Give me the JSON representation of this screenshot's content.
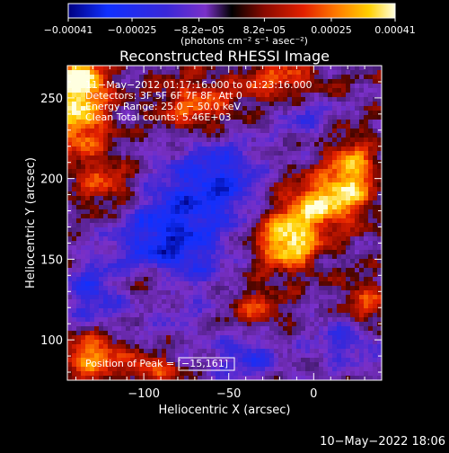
{
  "chart_data": {
    "type": "heatmap",
    "title": "Reconstructed RHESSI Image",
    "xlabel": "Heliocentric X (arcsec)",
    "ylabel": "Heliocentric Y (arcsec)",
    "xlim": [
      -145,
      40
    ],
    "ylim": [
      75,
      270
    ],
    "x_ticks": [
      {
        "value": -100,
        "label": "−100"
      },
      {
        "value": -50,
        "label": "−50"
      },
      {
        "value": 0,
        "label": "0"
      }
    ],
    "y_ticks": [
      {
        "value": 100,
        "label": "100"
      },
      {
        "value": 150,
        "label": "150"
      },
      {
        "value": 200,
        "label": "200"
      },
      {
        "value": 250,
        "label": "250"
      }
    ],
    "colorbar": {
      "range": [
        -0.00041,
        0.00041
      ],
      "ticks": [
        {
          "value": -0.00041,
          "label": "−0.00041"
        },
        {
          "value": -0.00025,
          "label": "−0.00025"
        },
        {
          "value": -8.2e-05,
          "label": "−8.2e−05"
        },
        {
          "value": 8.2e-05,
          "label": "8.2e−05"
        },
        {
          "value": 0.00025,
          "label": "0.00025"
        },
        {
          "value": 0.00041,
          "label": "0.00041"
        }
      ],
      "unit_label": "(photons cm⁻² s⁻¹ asec⁻²)"
    },
    "annotations": [
      "11−May−2012 01:17:16.000 to 01:23:16.000",
      "Detectors: 3F 5F 6F 7F 8F, Att 0",
      "Energy Range: 25.0 − 50.0 keV",
      "Clean    Total counts: 5.46E+03"
    ],
    "peak_label": "Position of Peak = [−15,161]",
    "peak": {
      "x": -15,
      "y": 161
    },
    "hot_regions": [
      {
        "x": -15,
        "y": 161,
        "sx": 13,
        "sy": 12,
        "amp": 1.0
      },
      {
        "x": 5,
        "y": 185,
        "sx": 16,
        "sy": 11,
        "amp": 0.8
      },
      {
        "x": 22,
        "y": 205,
        "sx": 10,
        "sy": 14,
        "amp": 0.75
      },
      {
        "x": -138,
        "y": 240,
        "sx": 12,
        "sy": 18,
        "amp": 0.85
      },
      {
        "x": -138,
        "y": 262,
        "sx": 10,
        "sy": 8,
        "amp": 0.8
      },
      {
        "x": -130,
        "y": 90,
        "sx": 12,
        "sy": 9,
        "amp": 0.75
      },
      {
        "x": -95,
        "y": 82,
        "sx": 10,
        "sy": 6,
        "amp": 0.6
      },
      {
        "x": -95,
        "y": 135,
        "sx": 16,
        "sy": 8,
        "amp": 0.55
      },
      {
        "x": -70,
        "y": 245,
        "sx": 16,
        "sy": 12,
        "amp": 0.55
      },
      {
        "x": -20,
        "y": 260,
        "sx": 18,
        "sy": 10,
        "amp": 0.5
      },
      {
        "x": -120,
        "y": 195,
        "sx": 14,
        "sy": 12,
        "amp": 0.5
      },
      {
        "x": 30,
        "y": 120,
        "sx": 10,
        "sy": 12,
        "amp": 0.5
      },
      {
        "x": -35,
        "y": 120,
        "sx": 12,
        "sy": 10,
        "amp": 0.4
      }
    ],
    "cold_regions": [
      {
        "x": -85,
        "y": 160,
        "sx": 22,
        "sy": 28,
        "amp": 0.8
      },
      {
        "x": -55,
        "y": 200,
        "sx": 18,
        "sy": 18,
        "amp": 0.6
      },
      {
        "x": -130,
        "y": 130,
        "sx": 12,
        "sy": 12,
        "amp": 0.55
      },
      {
        "x": 20,
        "y": 100,
        "sx": 14,
        "sy": 12,
        "amp": 0.5
      },
      {
        "x": -40,
        "y": 90,
        "sx": 14,
        "sy": 10,
        "amp": 0.5
      },
      {
        "x": -5,
        "y": 240,
        "sx": 12,
        "sy": 10,
        "amp": 0.4
      }
    ]
  },
  "footer": {
    "timestamp": "10−May−2022 18:06"
  }
}
